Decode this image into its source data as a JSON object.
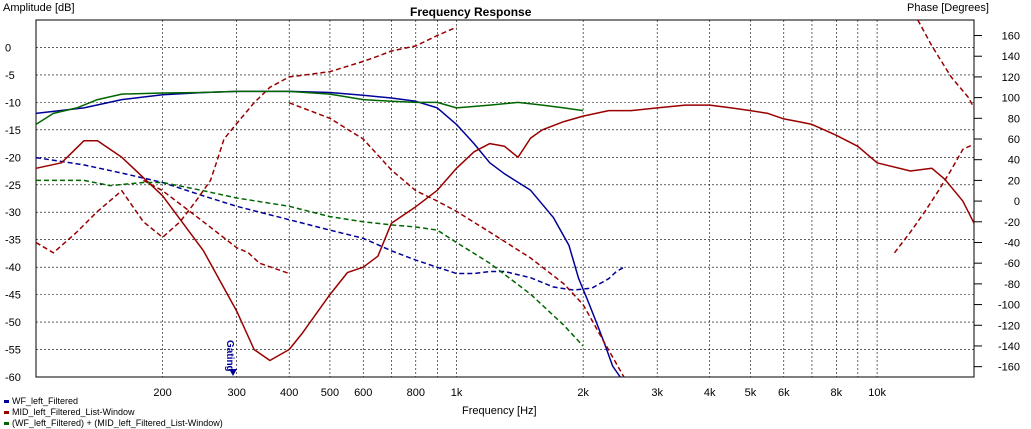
{
  "chart_data": {
    "type": "line",
    "title": "Frequency Response",
    "xlabel": "Frequency [Hz]",
    "ylabel_left": "Amplitude [dB]",
    "ylabel_right": "Phase [Degrees]",
    "xscale": "log",
    "xlim": [
      100,
      17000
    ],
    "ylim_left": [
      -60,
      5
    ],
    "ylim_right": [
      -170,
      175
    ],
    "x_tick_labels": [
      {
        "v": 200,
        "t": "200"
      },
      {
        "v": 300,
        "t": "300"
      },
      {
        "v": 400,
        "t": "400"
      },
      {
        "v": 500,
        "t": "500"
      },
      {
        "v": 600,
        "t": "600"
      },
      {
        "v": 800,
        "t": "800"
      },
      {
        "v": 1000,
        "t": "1k"
      },
      {
        "v": 2000,
        "t": "2k"
      },
      {
        "v": 3000,
        "t": "3k"
      },
      {
        "v": 4000,
        "t": "4k"
      },
      {
        "v": 5000,
        "t": "5k"
      },
      {
        "v": 6000,
        "t": "6k"
      },
      {
        "v": 8000,
        "t": "8k"
      },
      {
        "v": 10000,
        "t": "10k"
      }
    ],
    "x_minor_grid": [
      700,
      900,
      7000,
      9000,
      20000
    ],
    "y_left_ticks": [
      0,
      -5,
      -10,
      -15,
      -20,
      -25,
      -30,
      -35,
      -40,
      -45,
      -50,
      -55,
      -60
    ],
    "y_right_ticks": [
      160,
      140,
      120,
      100,
      80,
      60,
      40,
      20,
      0,
      -20,
      -40,
      -60,
      -80,
      -100,
      -120,
      -140,
      -160
    ],
    "grid": true,
    "legend_position": "bottom-left",
    "annotation": "Gating",
    "series": [
      {
        "name": "WF_left_Filtered",
        "color": "#000099",
        "kind": "amplitude",
        "points": [
          [
            100,
            -12
          ],
          [
            130,
            -11
          ],
          [
            160,
            -9.5
          ],
          [
            200,
            -8.6
          ],
          [
            250,
            -8.2
          ],
          [
            300,
            -8
          ],
          [
            400,
            -8
          ],
          [
            500,
            -8.2
          ],
          [
            600,
            -8.7
          ],
          [
            700,
            -9.2
          ],
          [
            800,
            -9.8
          ],
          [
            900,
            -11
          ],
          [
            1000,
            -14
          ],
          [
            1100,
            -17.5
          ],
          [
            1200,
            -21
          ],
          [
            1300,
            -23
          ],
          [
            1500,
            -26
          ],
          [
            1700,
            -31
          ],
          [
            1850,
            -36
          ],
          [
            1950,
            -42
          ],
          [
            2050,
            -46
          ],
          [
            2150,
            -50
          ],
          [
            2250,
            -54
          ],
          [
            2350,
            -58
          ],
          [
            2450,
            -60
          ]
        ]
      },
      {
        "name": "WF_left_Filtered",
        "color": "#000099",
        "kind": "phase",
        "points": [
          [
            100,
            42
          ],
          [
            130,
            35
          ],
          [
            160,
            27
          ],
          [
            200,
            18
          ],
          [
            250,
            5
          ],
          [
            300,
            -5
          ],
          [
            400,
            -18
          ],
          [
            500,
            -28
          ],
          [
            600,
            -36
          ],
          [
            700,
            -48
          ],
          [
            800,
            -57
          ],
          [
            900,
            -64
          ],
          [
            1000,
            -70
          ],
          [
            1100,
            -70
          ],
          [
            1200,
            -68
          ],
          [
            1300,
            -68
          ],
          [
            1500,
            -74
          ],
          [
            1700,
            -83
          ],
          [
            1900,
            -86
          ],
          [
            2100,
            -84
          ],
          [
            2300,
            -75
          ],
          [
            2400,
            -68
          ],
          [
            2500,
            -64
          ]
        ]
      },
      {
        "name": "MID_left_Filtered_List-Window",
        "color": "#990000",
        "kind": "amplitude",
        "points": [
          [
            100,
            -22
          ],
          [
            115,
            -21
          ],
          [
            130,
            -17
          ],
          [
            140,
            -17
          ],
          [
            160,
            -20
          ],
          [
            200,
            -27
          ],
          [
            250,
            -37
          ],
          [
            300,
            -48
          ],
          [
            330,
            -55
          ],
          [
            360,
            -57
          ],
          [
            400,
            -55
          ],
          [
            430,
            -52
          ],
          [
            500,
            -45
          ],
          [
            550,
            -41
          ],
          [
            600,
            -40
          ],
          [
            650,
            -38
          ],
          [
            700,
            -32
          ],
          [
            800,
            -29
          ],
          [
            900,
            -26
          ],
          [
            1000,
            -22
          ],
          [
            1100,
            -19
          ],
          [
            1200,
            -17.5
          ],
          [
            1300,
            -18
          ],
          [
            1400,
            -20
          ],
          [
            1500,
            -16.5
          ],
          [
            1600,
            -15
          ],
          [
            1800,
            -13.5
          ],
          [
            2000,
            -12.5
          ],
          [
            2300,
            -11.5
          ],
          [
            2600,
            -11.5
          ],
          [
            3000,
            -11
          ],
          [
            3500,
            -10.5
          ],
          [
            4000,
            -10.5
          ],
          [
            4500,
            -11
          ],
          [
            5000,
            -11.5
          ],
          [
            5500,
            -12
          ],
          [
            6000,
            -13
          ],
          [
            6500,
            -13.5
          ],
          [
            7000,
            -14
          ],
          [
            8000,
            -16
          ],
          [
            9000,
            -18
          ],
          [
            10000,
            -21
          ],
          [
            12000,
            -22.5
          ],
          [
            13500,
            -22
          ],
          [
            14500,
            -24
          ],
          [
            16000,
            -28
          ],
          [
            17000,
            -32
          ]
        ]
      },
      {
        "name": "MID_left_Filtered_List-Window",
        "color": "#990000",
        "kind": "phase",
        "points": [
          [
            100,
            -40
          ],
          [
            110,
            -50
          ],
          [
            125,
            -30
          ],
          [
            140,
            -10
          ],
          [
            160,
            10
          ],
          [
            180,
            -20
          ],
          [
            200,
            -35
          ],
          [
            220,
            -20
          ],
          [
            240,
            0
          ],
          [
            260,
            20
          ],
          [
            270,
            40
          ],
          [
            280,
            60
          ],
          [
            300,
            75
          ],
          [
            330,
            95
          ],
          [
            360,
            110
          ],
          [
            400,
            120
          ],
          [
            500,
            125
          ],
          [
            600,
            135
          ],
          [
            650,
            140
          ],
          [
            700,
            145
          ],
          [
            800,
            150
          ],
          [
            900,
            160
          ],
          [
            1000,
            168
          ]
        ]
      },
      {
        "name": "(WF_left_Filtered) + (MID_left_Filtered_List-Window)",
        "color": "#006600",
        "kind": "amplitude",
        "points": [
          [
            100,
            -14
          ],
          [
            110,
            -12
          ],
          [
            125,
            -11
          ],
          [
            140,
            -9.5
          ],
          [
            160,
            -8.5
          ],
          [
            200,
            -8.3
          ],
          [
            250,
            -8.2
          ],
          [
            300,
            -8
          ],
          [
            400,
            -8
          ],
          [
            500,
            -8.5
          ],
          [
            600,
            -9.5
          ],
          [
            700,
            -9.8
          ],
          [
            800,
            -10
          ],
          [
            900,
            -10
          ],
          [
            1000,
            -11
          ],
          [
            1200,
            -10.5
          ],
          [
            1400,
            -10
          ],
          [
            1600,
            -10.5
          ],
          [
            1800,
            -11
          ],
          [
            2000,
            -11.5
          ]
        ]
      },
      {
        "name": "(WF_left_Filtered) + (MID_left_Filtered_List-Window)",
        "color": "#006600",
        "kind": "phase",
        "points": [
          [
            100,
            20
          ],
          [
            130,
            20
          ],
          [
            150,
            15
          ],
          [
            180,
            18
          ],
          [
            200,
            18
          ],
          [
            250,
            10
          ],
          [
            300,
            3
          ],
          [
            400,
            -5
          ],
          [
            500,
            -15
          ],
          [
            600,
            -20
          ],
          [
            700,
            -23
          ],
          [
            800,
            -25
          ],
          [
            900,
            -28
          ],
          [
            1000,
            -40
          ],
          [
            1200,
            -60
          ],
          [
            1500,
            -90
          ],
          [
            1800,
            -120
          ],
          [
            2000,
            -140
          ]
        ]
      }
    ],
    "mid_phase_segments": [
      [
        [
          180,
          20
        ],
        [
          200,
          10
        ],
        [
          250,
          -20
        ],
        [
          300,
          -45
        ],
        [
          320,
          -50
        ],
        [
          340,
          -60
        ],
        [
          400,
          -70
        ]
      ],
      [
        [
          400,
          95
        ],
        [
          500,
          80
        ],
        [
          600,
          60
        ],
        [
          700,
          30
        ],
        [
          800,
          10
        ],
        [
          900,
          0
        ],
        [
          1000,
          -10
        ],
        [
          1200,
          -30
        ],
        [
          1500,
          -55
        ],
        [
          1800,
          -80
        ],
        [
          2000,
          -100
        ],
        [
          2200,
          -130
        ],
        [
          2500,
          -170
        ]
      ]
    ],
    "mid_phase_segments_2": [
      [
        [
          11000,
          -50
        ],
        [
          12000,
          -30
        ],
        [
          13000,
          -10
        ],
        [
          14000,
          10
        ],
        [
          15000,
          30
        ],
        [
          16000,
          50
        ],
        [
          17000,
          55
        ]
      ],
      [
        [
          12500,
          175
        ],
        [
          13500,
          150
        ],
        [
          15000,
          120
        ],
        [
          16500,
          100
        ],
        [
          17000,
          90
        ]
      ]
    ]
  },
  "legend": [
    {
      "label": "WF_left_Filtered",
      "color": "#000099"
    },
    {
      "label": "MID_left_Filtered_List-Window",
      "color": "#990000"
    },
    {
      "label": "(WF_left_Filtered) + (MID_left_Filtered_List-Window)",
      "color": "#006600"
    }
  ]
}
